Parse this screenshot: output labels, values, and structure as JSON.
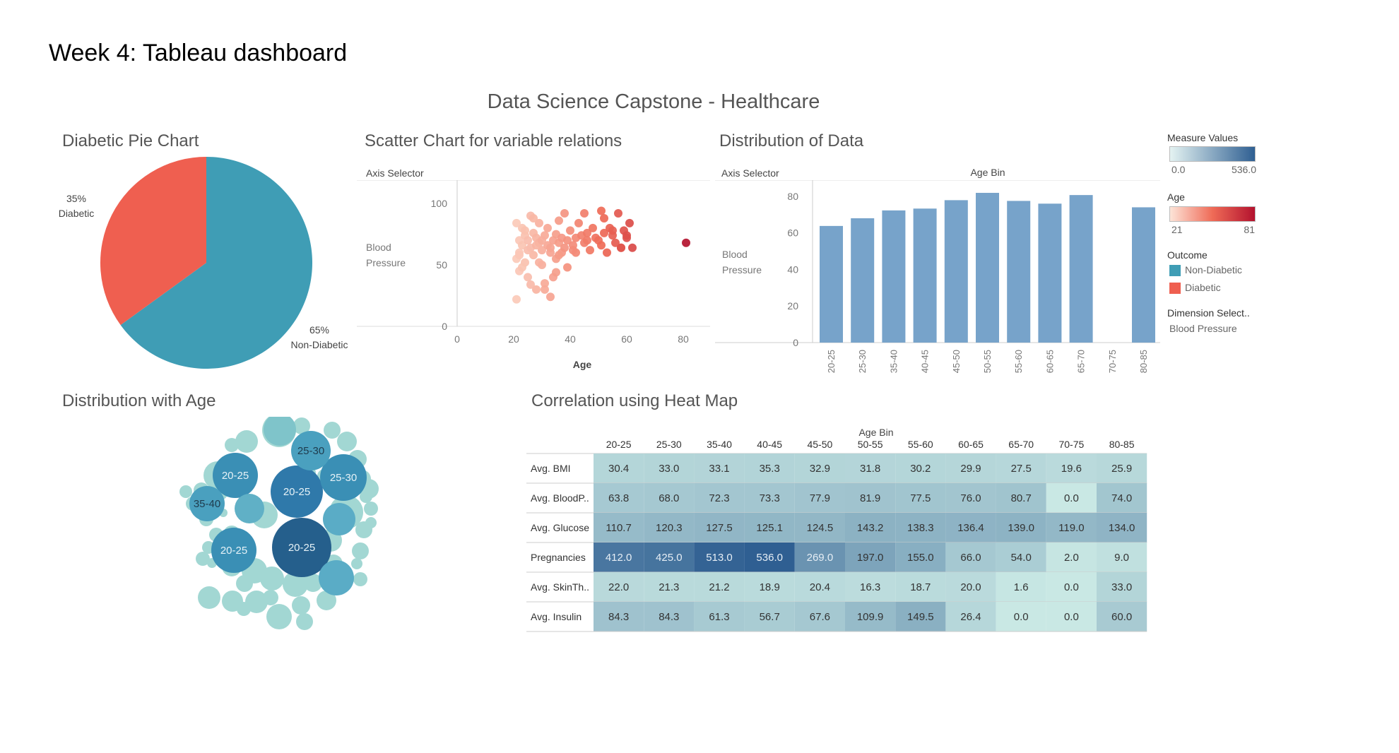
{
  "page": {
    "heading": "Week 4: Tableau dashboard",
    "dashboard_title": "Data Science Capstone - Healthcare"
  },
  "colors": {
    "non_diabetic": "#3f9db5",
    "diabetic": "#ef5f50",
    "bar": "#77a3ca",
    "age_low": "#fbcab9",
    "age_high": "#b3122e",
    "measure_low": "#c9e8e4",
    "measure_high": "#2f5f92"
  },
  "panels": {
    "pie_title": "Diabetic Pie Chart",
    "scatter_title": "Scatter Chart for variable relations",
    "scatter_axis_selector": "Axis Selector",
    "scatter_ylabel_1": "Blood",
    "scatter_ylabel_2": "Pressure",
    "scatter_xlabel": "Age",
    "dist_title": "Distribution of Data",
    "dist_axis_selector": "Axis Selector",
    "dist_header": "Age Bin",
    "dist_ylabel_1": "Blood",
    "dist_ylabel_2": "Pressure",
    "bubble_title": "Distribution with Age",
    "heat_title": "Correlation using Heat Map",
    "heat_header": "Age Bin"
  },
  "legend": {
    "measure_title": "Measure Values",
    "measure_min": "0.0",
    "measure_max": "536.0",
    "age_title": "Age",
    "age_min": "21",
    "age_max": "81",
    "outcome_title": "Outcome",
    "outcome_1": "Non-Diabetic",
    "outcome_2": "Diabetic",
    "dimension_title": "Dimension Select..",
    "dimension_value": "Blood Pressure"
  },
  "chart_data": [
    {
      "type": "pie",
      "title": "Diabetic Pie Chart",
      "slices": [
        {
          "pct_label": "65%",
          "label": "Non-Diabetic",
          "value": 65
        },
        {
          "pct_label": "35%",
          "label": "Diabetic",
          "value": 35
        }
      ]
    },
    {
      "type": "scatter",
      "title": "Scatter Chart for variable relations",
      "xlabel": "Age",
      "ylabel": "Blood Pressure",
      "xlim": [
        0,
        85
      ],
      "ylim": [
        0,
        115
      ],
      "xticks": [
        "0",
        "20",
        "40",
        "60",
        "80"
      ],
      "yticks": [
        "0",
        "50",
        "100"
      ],
      "x": [
        21,
        21,
        22,
        22,
        22,
        23,
        23,
        24,
        24,
        25,
        25,
        26,
        26,
        27,
        27,
        28,
        28,
        29,
        29,
        30,
        30,
        31,
        31,
        32,
        32,
        33,
        33,
        34,
        34,
        35,
        35,
        36,
        36,
        37,
        37,
        38,
        38,
        39,
        39,
        40,
        41,
        42,
        42,
        43,
        44,
        45,
        45,
        46,
        47,
        48,
        49,
        50,
        51,
        52,
        52,
        53,
        54,
        55,
        56,
        57,
        58,
        59,
        60,
        61,
        62,
        81,
        22,
        25,
        28,
        30,
        33,
        21,
        24,
        27,
        23,
        26,
        31,
        35,
        29,
        36,
        41,
        46,
        51,
        55,
        58,
        60
      ],
      "y": [
        22,
        55,
        70,
        60,
        45,
        80,
        66,
        52,
        74,
        70,
        40,
        64,
        90,
        58,
        76,
        72,
        30,
        68,
        84,
        62,
        50,
        74,
        35,
        66,
        80,
        24,
        60,
        70,
        40,
        75,
        55,
        68,
        86,
        60,
        72,
        64,
        92,
        70,
        48,
        78,
        66,
        72,
        60,
        84,
        74,
        68,
        92,
        76,
        62,
        80,
        72,
        70,
        66,
        88,
        76,
        60,
        80,
        74,
        68,
        92,
        64,
        78,
        72,
        84,
        64,
        68,
        58,
        62,
        66,
        70,
        64,
        84,
        78,
        88,
        48,
        34,
        30,
        44,
        52,
        58,
        62,
        70,
        94,
        78,
        64,
        74
      ]
    },
    {
      "type": "bar",
      "title": "Distribution of Data",
      "categories": [
        "20-25",
        "25-30",
        "35-40",
        "40-45",
        "45-50",
        "50-55",
        "55-60",
        "60-65",
        "65-70",
        "70-75",
        "80-85"
      ],
      "values": [
        63.8,
        68.0,
        72.3,
        73.3,
        77.9,
        81.9,
        77.5,
        76.0,
        80.7,
        0.0,
        74.0
      ],
      "xlabel": "Age Bin",
      "ylabel": "Blood Pressure",
      "ylim": [
        0,
        85
      ],
      "yticks": [
        "0",
        "20",
        "40",
        "60",
        "80"
      ]
    },
    {
      "type": "bubble",
      "title": "Distribution with Age",
      "labeled_bubbles": [
        {
          "label": "20-25",
          "value": 9
        },
        {
          "label": "20-25",
          "value": 6
        },
        {
          "label": "20-25",
          "value": 5
        },
        {
          "label": "20-25",
          "value": 5
        },
        {
          "label": "25-30",
          "value": 5
        },
        {
          "label": "25-30",
          "value": 4
        },
        {
          "label": "35-40",
          "value": 3
        }
      ]
    },
    {
      "type": "heatmap",
      "title": "Correlation using Heat Map",
      "xlabel": "Age Bin",
      "columns": [
        "20-25",
        "25-30",
        "35-40",
        "40-45",
        "45-50",
        "50-55",
        "55-60",
        "60-65",
        "65-70",
        "70-75",
        "80-85"
      ],
      "rows": [
        "Avg. BMI",
        "Avg. BloodP..",
        "Avg. Glucose",
        "Pregnancies",
        "Avg. SkinTh..",
        "Avg. Insulin"
      ],
      "values": [
        [
          30.4,
          33.0,
          33.1,
          35.3,
          32.9,
          31.8,
          30.2,
          29.9,
          27.5,
          19.6,
          25.9
        ],
        [
          63.8,
          68.0,
          72.3,
          73.3,
          77.9,
          81.9,
          77.5,
          76.0,
          80.7,
          0.0,
          74.0
        ],
        [
          110.7,
          120.3,
          127.5,
          125.1,
          124.5,
          143.2,
          138.3,
          136.4,
          139.0,
          119.0,
          134.0
        ],
        [
          412.0,
          425.0,
          513.0,
          536.0,
          269.0,
          197.0,
          155.0,
          66.0,
          54.0,
          2.0,
          9.0
        ],
        [
          22.0,
          21.3,
          21.2,
          18.9,
          20.4,
          16.3,
          18.7,
          20.0,
          1.6,
          0.0,
          33.0
        ],
        [
          84.3,
          84.3,
          61.3,
          56.7,
          67.6,
          109.9,
          149.5,
          26.4,
          0.0,
          0.0,
          60.0
        ]
      ],
      "range": [
        0.0,
        536.0
      ]
    }
  ]
}
